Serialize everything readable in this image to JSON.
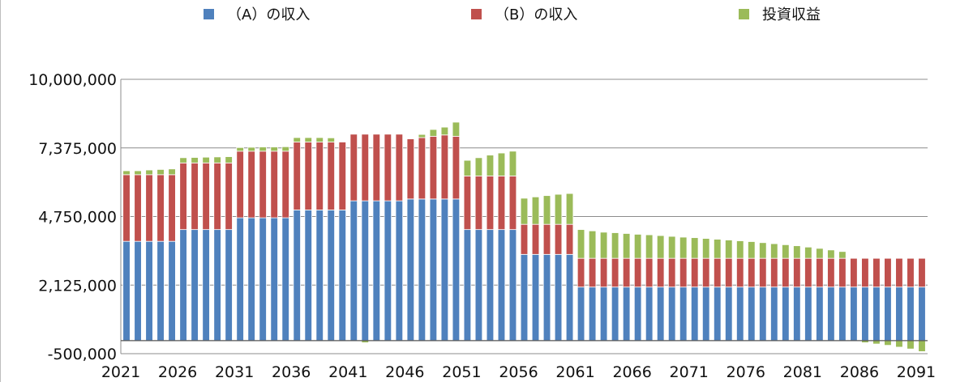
{
  "legend": [
    {
      "label": "（A）の収入",
      "color": "#4f81bd"
    },
    {
      "label": "（B）の収入",
      "color": "#c0504d"
    },
    {
      "label": "投資収益",
      "color": "#9bbb59"
    }
  ],
  "chart_data": {
    "type": "bar",
    "stacked": true,
    "title": "",
    "xlabel": "",
    "ylabel": "",
    "ylim": [
      -500000,
      10000000
    ],
    "yticks": [
      -500000,
      2125000,
      4750000,
      7375000,
      10000000
    ],
    "ytick_labels": [
      "-500,000",
      "2,125,000",
      "4,750,000",
      "7,375,000",
      "10,000,000"
    ],
    "xtick_labels": [
      "2021",
      "2026",
      "2031",
      "2036",
      "2041",
      "2046",
      "2051",
      "2056",
      "2061",
      "2066",
      "2071",
      "2076",
      "2081",
      "2086",
      "2091"
    ],
    "grid": true,
    "legend_position": "top",
    "categories": [
      "2021",
      "2022",
      "2023",
      "2024",
      "2025",
      "2026",
      "2027",
      "2028",
      "2029",
      "2030",
      "2031",
      "2032",
      "2033",
      "2034",
      "2035",
      "2036",
      "2037",
      "2038",
      "2039",
      "2040",
      "2041",
      "2042",
      "2043",
      "2044",
      "2045",
      "2046",
      "2047",
      "2048",
      "2049",
      "2050",
      "2051",
      "2052",
      "2053",
      "2054",
      "2055",
      "2056",
      "2057",
      "2058",
      "2059",
      "2060",
      "2061",
      "2062",
      "2063",
      "2064",
      "2065",
      "2066",
      "2067",
      "2068",
      "2069",
      "2070",
      "2071",
      "2072",
      "2073",
      "2074",
      "2075",
      "2076",
      "2077",
      "2078",
      "2079",
      "2080",
      "2081",
      "2082",
      "2083",
      "2084",
      "2085",
      "2086",
      "2087",
      "2088",
      "2089",
      "2090",
      "2091"
    ],
    "series": [
      {
        "name": "（A）の収入",
        "color": "#4f81bd",
        "values": [
          3800000,
          3800000,
          3800000,
          3800000,
          3800000,
          4250000,
          4250000,
          4250000,
          4250000,
          4250000,
          4700000,
          4700000,
          4700000,
          4700000,
          4700000,
          5000000,
          5000000,
          5000000,
          5000000,
          5000000,
          5350000,
          5350000,
          5350000,
          5350000,
          5350000,
          5420000,
          5420000,
          5420000,
          5420000,
          5420000,
          4250000,
          4250000,
          4250000,
          4250000,
          4250000,
          3300000,
          3300000,
          3300000,
          3300000,
          3300000,
          2050000,
          2050000,
          2050000,
          2050000,
          2050000,
          2050000,
          2050000,
          2050000,
          2050000,
          2050000,
          2050000,
          2050000,
          2050000,
          2050000,
          2050000,
          2050000,
          2050000,
          2050000,
          2050000,
          2050000,
          2050000,
          2050000,
          2050000,
          2050000,
          2050000,
          2050000,
          2050000,
          2050000,
          2050000,
          2050000,
          2050000
        ]
      },
      {
        "name": "（B）の収入",
        "color": "#c0504d",
        "values": [
          2550000,
          2550000,
          2550000,
          2550000,
          2550000,
          2550000,
          2550000,
          2550000,
          2550000,
          2550000,
          2550000,
          2550000,
          2550000,
          2550000,
          2550000,
          2600000,
          2600000,
          2600000,
          2600000,
          2600000,
          2550000,
          2550000,
          2550000,
          2550000,
          2550000,
          2300000,
          2350000,
          2400000,
          2450000,
          2400000,
          2050000,
          2050000,
          2050000,
          2050000,
          2050000,
          1150000,
          1150000,
          1150000,
          1150000,
          1150000,
          1100000,
          1100000,
          1100000,
          1100000,
          1100000,
          1100000,
          1100000,
          1100000,
          1100000,
          1100000,
          1100000,
          1100000,
          1100000,
          1100000,
          1100000,
          1100000,
          1100000,
          1100000,
          1100000,
          1100000,
          1100000,
          1100000,
          1100000,
          1100000,
          1100000,
          1100000,
          1100000,
          1100000,
          1100000,
          1100000,
          1100000
        ]
      },
      {
        "name": "投資収益",
        "color": "#9bbb59",
        "values": [
          150000,
          150000,
          180000,
          200000,
          220000,
          200000,
          210000,
          220000,
          230000,
          240000,
          140000,
          150000,
          160000,
          160000,
          170000,
          170000,
          170000,
          170000,
          160000,
          0,
          0,
          -80000,
          0,
          0,
          0,
          0,
          120000,
          260000,
          300000,
          540000,
          600000,
          700000,
          800000,
          880000,
          950000,
          1000000,
          1050000,
          1100000,
          1150000,
          1180000,
          1100000,
          1050000,
          1000000,
          980000,
          950000,
          920000,
          900000,
          870000,
          840000,
          810000,
          790000,
          760000,
          730000,
          700000,
          670000,
          640000,
          600000,
          560000,
          520000,
          480000,
          430000,
          380000,
          320000,
          260000,
          0,
          -80000,
          -130000,
          -180000,
          -250000,
          -320000,
          -420000
        ]
      }
    ]
  }
}
